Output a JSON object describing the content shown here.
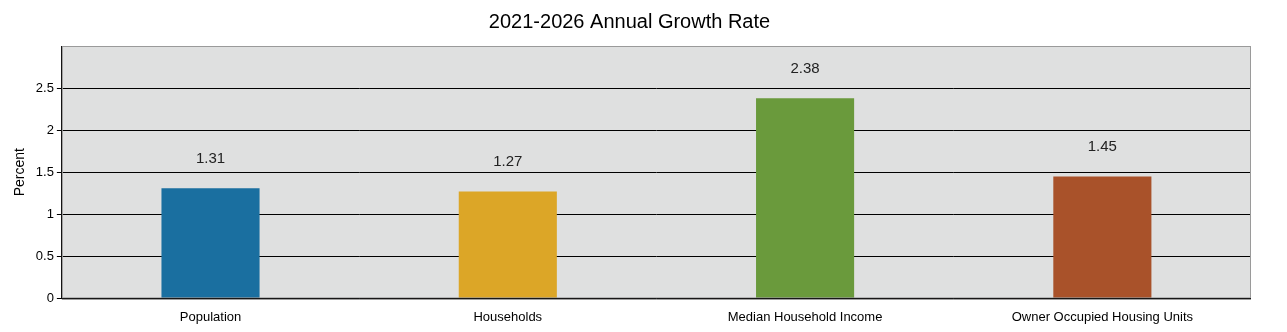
{
  "chart_data": {
    "type": "bar",
    "title": "2021-2026 Annual Growth Rate",
    "y_label": "Percent",
    "categories": [
      "Population",
      "Households",
      "Median Household Income",
      "Owner Occupied Housing Units"
    ],
    "values": [
      1.31,
      1.27,
      2.38,
      1.45
    ],
    "colors": [
      "#1a6fa0",
      "#dca627",
      "#6a9a3c",
      "#a9522a"
    ],
    "ylim": [
      0,
      3
    ],
    "yticks": [
      0,
      0.5,
      1,
      1.5,
      2,
      2.5
    ],
    "grid": true,
    "data_labels": true
  }
}
